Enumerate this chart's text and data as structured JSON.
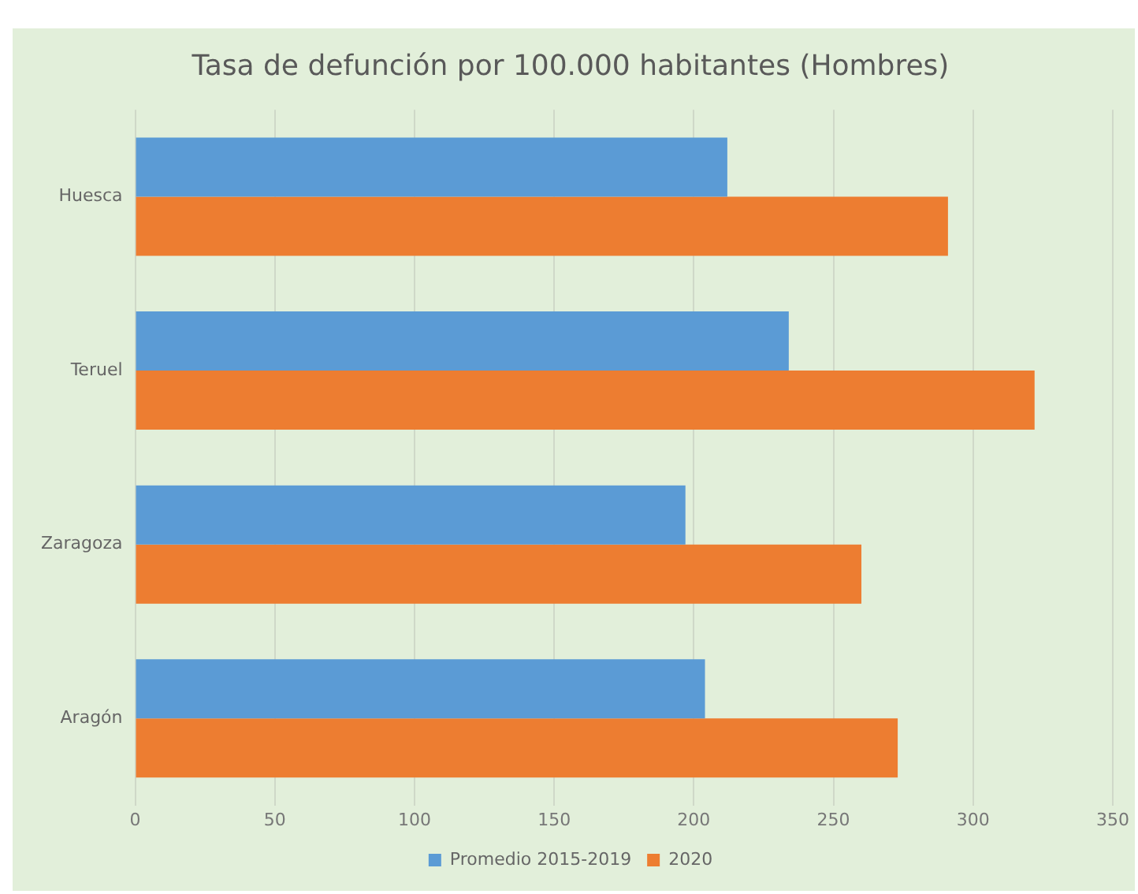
{
  "chart_data": {
    "type": "bar",
    "orientation": "horizontal",
    "title": "Tasa de defunción por 100.000 habitantes (Hombres)",
    "categories": [
      "Huesca",
      "Teruel",
      "Zaragoza",
      "Aragón"
    ],
    "series": [
      {
        "name": "Promedio 2015-2019",
        "color": "#5b9bd5",
        "values": [
          212,
          234,
          197,
          204
        ]
      },
      {
        "name": "2020",
        "color": "#ed7d31",
        "values": [
          291,
          322,
          260,
          273
        ]
      }
    ],
    "xlim": [
      0,
      350
    ],
    "xticks": [
      0,
      50,
      100,
      150,
      200,
      250,
      300,
      350
    ],
    "grid": "x",
    "legend": "bottom"
  }
}
